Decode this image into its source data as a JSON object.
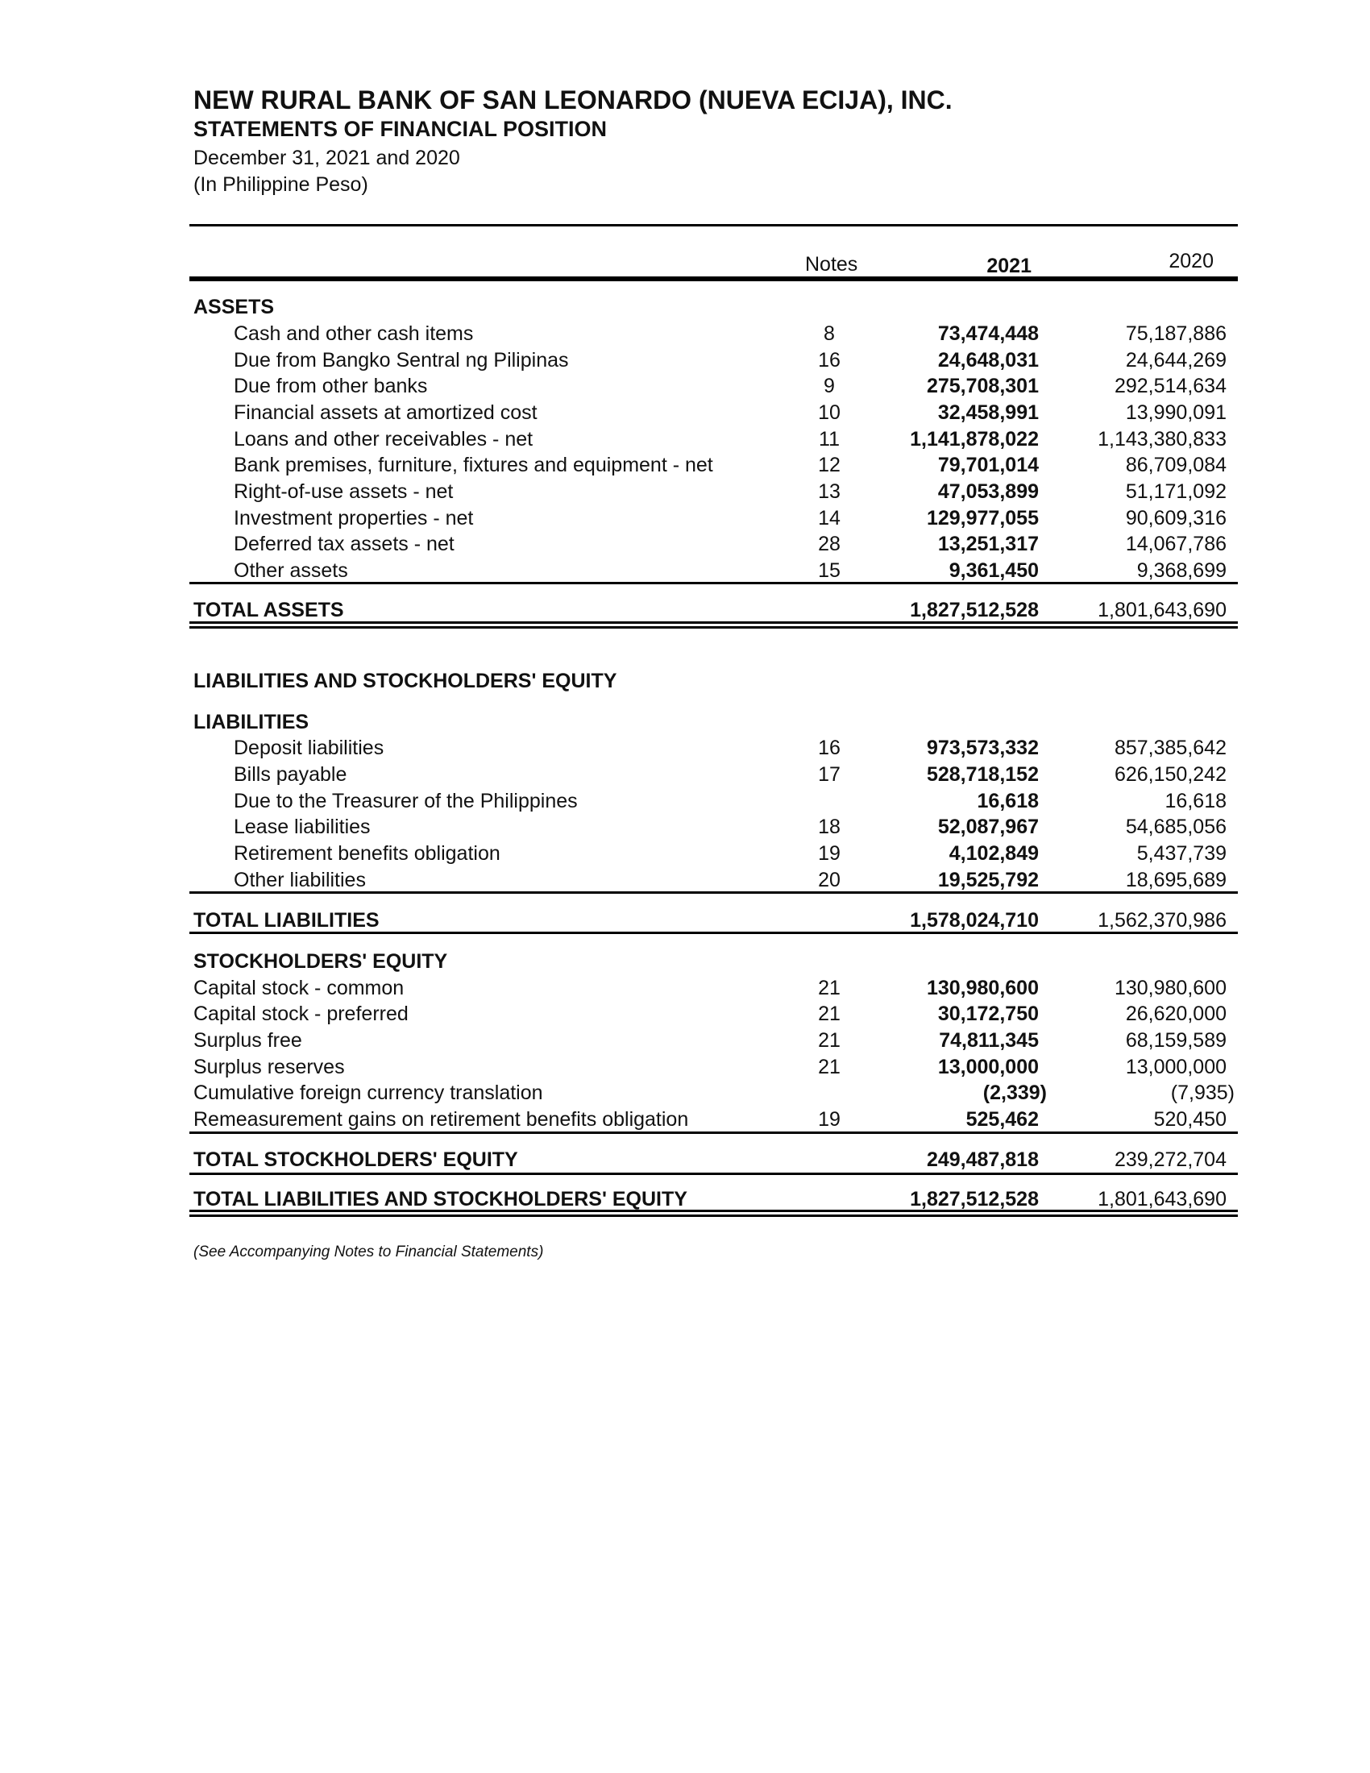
{
  "header": {
    "company": "NEW RURAL BANK OF SAN LEONARDO (NUEVA ECIJA), INC.",
    "statement": "STATEMENTS OF FINANCIAL POSITION",
    "period": "December 31, 2021 and 2020",
    "currency": "(In Philippine Peso)"
  },
  "columns": {
    "notes": "Notes",
    "y2021": "2021",
    "y2020": "2020"
  },
  "rows": [
    {
      "type": "section",
      "label": "ASSETS"
    },
    {
      "type": "item",
      "indent": true,
      "label": "Cash and other cash items",
      "note": "8",
      "v2021": "73,474,448",
      "v2020": "75,187,886"
    },
    {
      "type": "item",
      "indent": true,
      "label": "Due from Bangko Sentral ng Pilipinas",
      "note": "16",
      "v2021": "24,648,031",
      "v2020": "24,644,269"
    },
    {
      "type": "item",
      "indent": true,
      "label": "Due from other banks",
      "note": "9",
      "v2021": "275,708,301",
      "v2020": "292,514,634"
    },
    {
      "type": "item",
      "indent": true,
      "label": "Financial assets at amortized cost",
      "note": "10",
      "v2021": "32,458,991",
      "v2020": "13,990,091"
    },
    {
      "type": "item",
      "indent": true,
      "label": "Loans and other receivables - net",
      "note": "11",
      "v2021": "1,141,878,022",
      "v2020": "1,143,380,833"
    },
    {
      "type": "item",
      "indent": true,
      "label": "Bank premises, furniture, fixtures and equipment - net",
      "note": "12",
      "v2021": "79,701,014",
      "v2020": "86,709,084"
    },
    {
      "type": "item",
      "indent": true,
      "label": "Right-of-use assets - net",
      "note": "13",
      "v2021": "47,053,899",
      "v2020": "51,171,092"
    },
    {
      "type": "item",
      "indent": true,
      "label": "Investment properties - net",
      "note": "14",
      "v2021": "129,977,055",
      "v2020": "90,609,316"
    },
    {
      "type": "item",
      "indent": true,
      "label": "Deferred tax assets - net",
      "note": "28",
      "v2021": "13,251,317",
      "v2020": "14,067,786"
    },
    {
      "type": "item",
      "indent": true,
      "label": "Other assets",
      "note": "15",
      "v2021": "9,361,450",
      "v2020": "9,368,699"
    },
    {
      "type": "total",
      "label": "TOTAL ASSETS",
      "v2021": "1,827,512,528",
      "v2020": "1,801,643,690"
    },
    {
      "type": "section",
      "label": "LIABILITIES AND STOCKHOLDERS' EQUITY"
    },
    {
      "type": "section",
      "label": "LIABILITIES"
    },
    {
      "type": "item",
      "indent": true,
      "label": "Deposit liabilities",
      "note": "16",
      "v2021": "973,573,332",
      "v2020": "857,385,642"
    },
    {
      "type": "item",
      "indent": true,
      "label": "Bills payable",
      "note": "17",
      "v2021": "528,718,152",
      "v2020": "626,150,242"
    },
    {
      "type": "item",
      "indent": true,
      "label": "Due to the Treasurer of the Philippines",
      "note": "",
      "v2021": "16,618",
      "v2020": "16,618"
    },
    {
      "type": "item",
      "indent": true,
      "label": "Lease liabilities",
      "note": "18",
      "v2021": "52,087,967",
      "v2020": "54,685,056"
    },
    {
      "type": "item",
      "indent": true,
      "label": "Retirement benefits obligation",
      "note": "19",
      "v2021": "4,102,849",
      "v2020": "5,437,739"
    },
    {
      "type": "item",
      "indent": true,
      "label": "Other liabilities",
      "note": "20",
      "v2021": "19,525,792",
      "v2020": "18,695,689"
    },
    {
      "type": "total",
      "label": "TOTAL LIABILITIES",
      "v2021": "1,578,024,710",
      "v2020": "1,562,370,986"
    },
    {
      "type": "section",
      "label": "STOCKHOLDERS' EQUITY"
    },
    {
      "type": "item",
      "indent": false,
      "label": "Capital stock - common",
      "note": "21",
      "v2021": "130,980,600",
      "v2020": "130,980,600"
    },
    {
      "type": "item",
      "indent": false,
      "label": "Capital stock - preferred",
      "note": "21",
      "v2021": "30,172,750",
      "v2020": "26,620,000"
    },
    {
      "type": "item",
      "indent": false,
      "label": "Surplus free",
      "note": "21",
      "v2021": "74,811,345",
      "v2020": "68,159,589"
    },
    {
      "type": "item",
      "indent": false,
      "label": "Surplus reserves",
      "note": "21",
      "v2021": "13,000,000",
      "v2020": "13,000,000"
    },
    {
      "type": "item",
      "indent": false,
      "label": "Cumulative foreign currency translation",
      "note": "",
      "v2021": "(2,339)",
      "v2020": "(7,935)"
    },
    {
      "type": "item",
      "indent": false,
      "label": "Remeasurement gains on retirement benefits obligation",
      "note": "19",
      "v2021": "525,462",
      "v2020": "520,450"
    },
    {
      "type": "total",
      "label": "TOTAL STOCKHOLDERS' EQUITY",
      "v2021": "249,487,818",
      "v2020": "239,272,704"
    },
    {
      "type": "total",
      "label": "TOTAL LIABILITIES AND STOCKHOLDERS' EQUITY",
      "v2021": "1,827,512,528",
      "v2020": "1,801,643,690"
    }
  ],
  "footnote": "(See Accompanying Notes to Financial Statements)"
}
